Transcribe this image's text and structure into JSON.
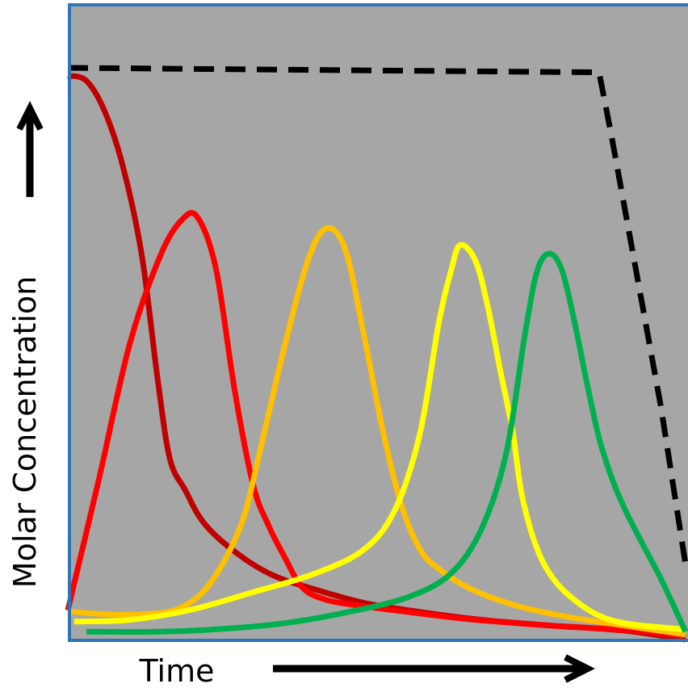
{
  "chart_data": {
    "type": "line",
    "title": "",
    "xlabel": "Time",
    "ylabel": "Molar Concentration",
    "xlim": [
      0,
      100
    ],
    "ylim": [
      0,
      100
    ],
    "grid": false,
    "legend": "none",
    "background": "#a6a6a6",
    "frame_color": "#2e75b6",
    "series": [
      {
        "color": "#000000",
        "style": "dashed",
        "points": [
          [
            0,
            100
          ],
          [
            86,
            99.2
          ],
          [
            88,
            88
          ],
          [
            90,
            76
          ],
          [
            92,
            64
          ],
          [
            94,
            52
          ],
          [
            96,
            40
          ],
          [
            98,
            26
          ],
          [
            100,
            12
          ]
        ]
      },
      {
        "color": "#c00000",
        "style": "solid",
        "points": [
          [
            0,
            98.6
          ],
          [
            3,
            97.7
          ],
          [
            6,
            92.2
          ],
          [
            9,
            82.2
          ],
          [
            12,
            66.6
          ],
          [
            14.5,
            45.2
          ],
          [
            16.5,
            30.8
          ],
          [
            19,
            25.2
          ],
          [
            22,
            19.4
          ],
          [
            27,
            14.3
          ],
          [
            33,
            10.2
          ],
          [
            40,
            7.6
          ],
          [
            48,
            5.2
          ],
          [
            57,
            3.6
          ],
          [
            67,
            2.2
          ],
          [
            78,
            1.2
          ],
          [
            90,
            0.3
          ],
          [
            100,
            -1.3
          ]
        ]
      },
      {
        "color": "#ff0000",
        "style": "solid",
        "points": [
          [
            0,
            3.9
          ],
          [
            5,
            27
          ],
          [
            10,
            51
          ],
          [
            15,
            66.8
          ],
          [
            18.5,
            73.1
          ],
          [
            21,
            73.5
          ],
          [
            24,
            64.3
          ],
          [
            27,
            42.9
          ],
          [
            30,
            26.1
          ],
          [
            32.5,
            18.9
          ],
          [
            35,
            13.5
          ],
          [
            38,
            7.9
          ],
          [
            42,
            5.7
          ],
          [
            48,
            4.6
          ],
          [
            55,
            3.6
          ],
          [
            65,
            2.3
          ],
          [
            78,
            1.2
          ],
          [
            90,
            0.4
          ],
          [
            100,
            -0.7
          ]
        ]
      },
      {
        "color": "#ffc000",
        "style": "solid",
        "points": [
          [
            0,
            3.7
          ],
          [
            6,
            3.2
          ],
          [
            12,
            3.2
          ],
          [
            18,
            4.2
          ],
          [
            23,
            8.6
          ],
          [
            28,
            18.9
          ],
          [
            31,
            31.6
          ],
          [
            35,
            50.3
          ],
          [
            39,
            66.3
          ],
          [
            42,
            71.6
          ],
          [
            45,
            67.5
          ],
          [
            48,
            52.3
          ],
          [
            51,
            35.7
          ],
          [
            54,
            22.5
          ],
          [
            57,
            14.7
          ],
          [
            60,
            11.3
          ],
          [
            65,
            7.8
          ],
          [
            72,
            4.9
          ],
          [
            80,
            2.9
          ],
          [
            90,
            1.2
          ],
          [
            100,
            -0.4
          ]
        ]
      },
      {
        "color": "#ffff00",
        "style": "solid",
        "points": [
          [
            1,
            1.9
          ],
          [
            10,
            2.2
          ],
          [
            20,
            4
          ],
          [
            30,
            7.1
          ],
          [
            40,
            10.4
          ],
          [
            48,
            14.7
          ],
          [
            53,
            21.8
          ],
          [
            57,
            35.2
          ],
          [
            60,
            54.5
          ],
          [
            62,
            63.9
          ],
          [
            63.5,
            68.6
          ],
          [
            66,
            65.8
          ],
          [
            68,
            57.6
          ],
          [
            70,
            46.4
          ],
          [
            72,
            35.7
          ],
          [
            73.5,
            24.3
          ],
          [
            76,
            14.7
          ],
          [
            79,
            8.9
          ],
          [
            83,
            4.9
          ],
          [
            87,
            2.5
          ],
          [
            92,
            1.3
          ],
          [
            100,
            0.5
          ]
        ]
      },
      {
        "color": "#00b050",
        "style": "solid",
        "points": [
          [
            3,
            0.1
          ],
          [
            15,
            0.1
          ],
          [
            25,
            0.6
          ],
          [
            35,
            1.6
          ],
          [
            45,
            3.5
          ],
          [
            55,
            6.2
          ],
          [
            62,
            10.4
          ],
          [
            67,
            18.4
          ],
          [
            71,
            31.9
          ],
          [
            74,
            52.8
          ],
          [
            76,
            64.1
          ],
          [
            78,
            67.1
          ],
          [
            80,
            64.1
          ],
          [
            82,
            55.1
          ],
          [
            84,
            44.3
          ],
          [
            86,
            34.4
          ],
          [
            88,
            27.5
          ],
          [
            90,
            22.2
          ],
          [
            93,
            15.7
          ],
          [
            96,
            9.5
          ],
          [
            100,
            0.1
          ]
        ]
      }
    ]
  }
}
